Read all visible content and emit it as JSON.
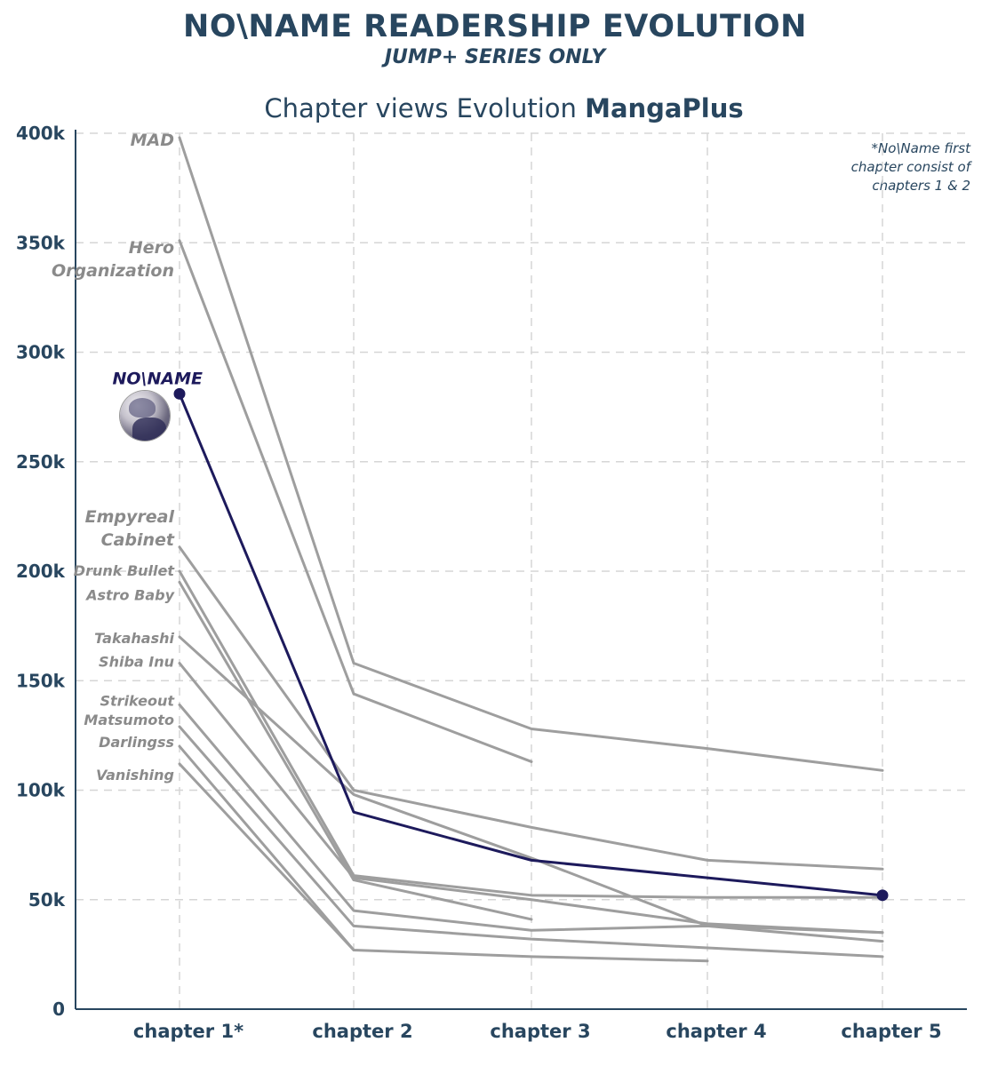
{
  "header": {
    "title": "NO\\NAME READERSHIP EVOLUTION",
    "subtitle": "JUMP+ SERIES ONLY"
  },
  "chart_title": {
    "prefix": "Chapter views Evolution ",
    "brand": "MangaPlus"
  },
  "note": "*No\\Name first\nchapter consist of\nchapters 1 & 2",
  "colors": {
    "highlight": "#1d1a5c",
    "gray": "#9e9e9e",
    "axis": "#28465f",
    "grid": "#d6d6d6"
  },
  "chart_data": {
    "type": "line",
    "title": "Chapter views Evolution MangaPlus",
    "xlabel": "",
    "ylabel": "",
    "ylim": [
      0,
      400000
    ],
    "yticks": [
      0,
      50000,
      100000,
      150000,
      200000,
      250000,
      300000,
      350000,
      400000
    ],
    "ytick_labels": [
      "0",
      "50k",
      "100k",
      "150k",
      "200k",
      "250k",
      "300k",
      "350k",
      "400k"
    ],
    "categories": [
      "chapter 1*",
      "chapter 2",
      "chapter 3",
      "chapter 4",
      "chapter 5"
    ],
    "grid": true,
    "series": [
      {
        "name": "MAD",
        "labels": [
          "MAD"
        ],
        "values": [
          398000,
          158000,
          128000,
          119000,
          109000
        ]
      },
      {
        "name": "Hero Organization",
        "labels": [
          "Hero",
          "Organization"
        ],
        "values": [
          351000,
          144000,
          113000,
          null,
          null
        ]
      },
      {
        "name": "NO\\NAME",
        "labels": [
          "NO\\NAME"
        ],
        "highlight": true,
        "values": [
          281000,
          90000,
          68000,
          60000,
          52000
        ]
      },
      {
        "name": "Empyreal Cabinet",
        "labels": [
          "Empyreal",
          "Cabinet"
        ],
        "values": [
          211000,
          100000,
          83000,
          68000,
          64000
        ]
      },
      {
        "name": "Drunk Bullet",
        "labels": [
          "Drunk Bullet"
        ],
        "values": [
          200000,
          61000,
          52000,
          51000,
          51000
        ]
      },
      {
        "name": "Astro Baby",
        "labels": [
          "Astro Baby"
        ],
        "values": [
          195000,
          59000,
          41000,
          null,
          null
        ]
      },
      {
        "name": "Takahashi",
        "labels": [
          "Takahashi"
        ],
        "values": [
          170000,
          98000,
          69000,
          38000,
          35000
        ]
      },
      {
        "name": "Shiba Inu",
        "labels": [
          "Shiba Inu"
        ],
        "values": [
          158000,
          60000,
          50000,
          39000,
          35000
        ]
      },
      {
        "name": "Strikeout",
        "labels": [
          "Strikeout"
        ],
        "values": [
          139000,
          45000,
          36000,
          38000,
          31000
        ]
      },
      {
        "name": "Matsumoto",
        "labels": [
          "Matsumoto"
        ],
        "values": [
          129000,
          38000,
          32000,
          28000,
          24000
        ]
      },
      {
        "name": "Darlingss",
        "labels": [
          "Darlingss"
        ],
        "values": [
          120000,
          27000,
          24000,
          22000,
          null
        ]
      },
      {
        "name": "Vanishing",
        "labels": [
          "Vanishing"
        ],
        "values": [
          112000,
          27000,
          null,
          null,
          null
        ]
      }
    ]
  }
}
